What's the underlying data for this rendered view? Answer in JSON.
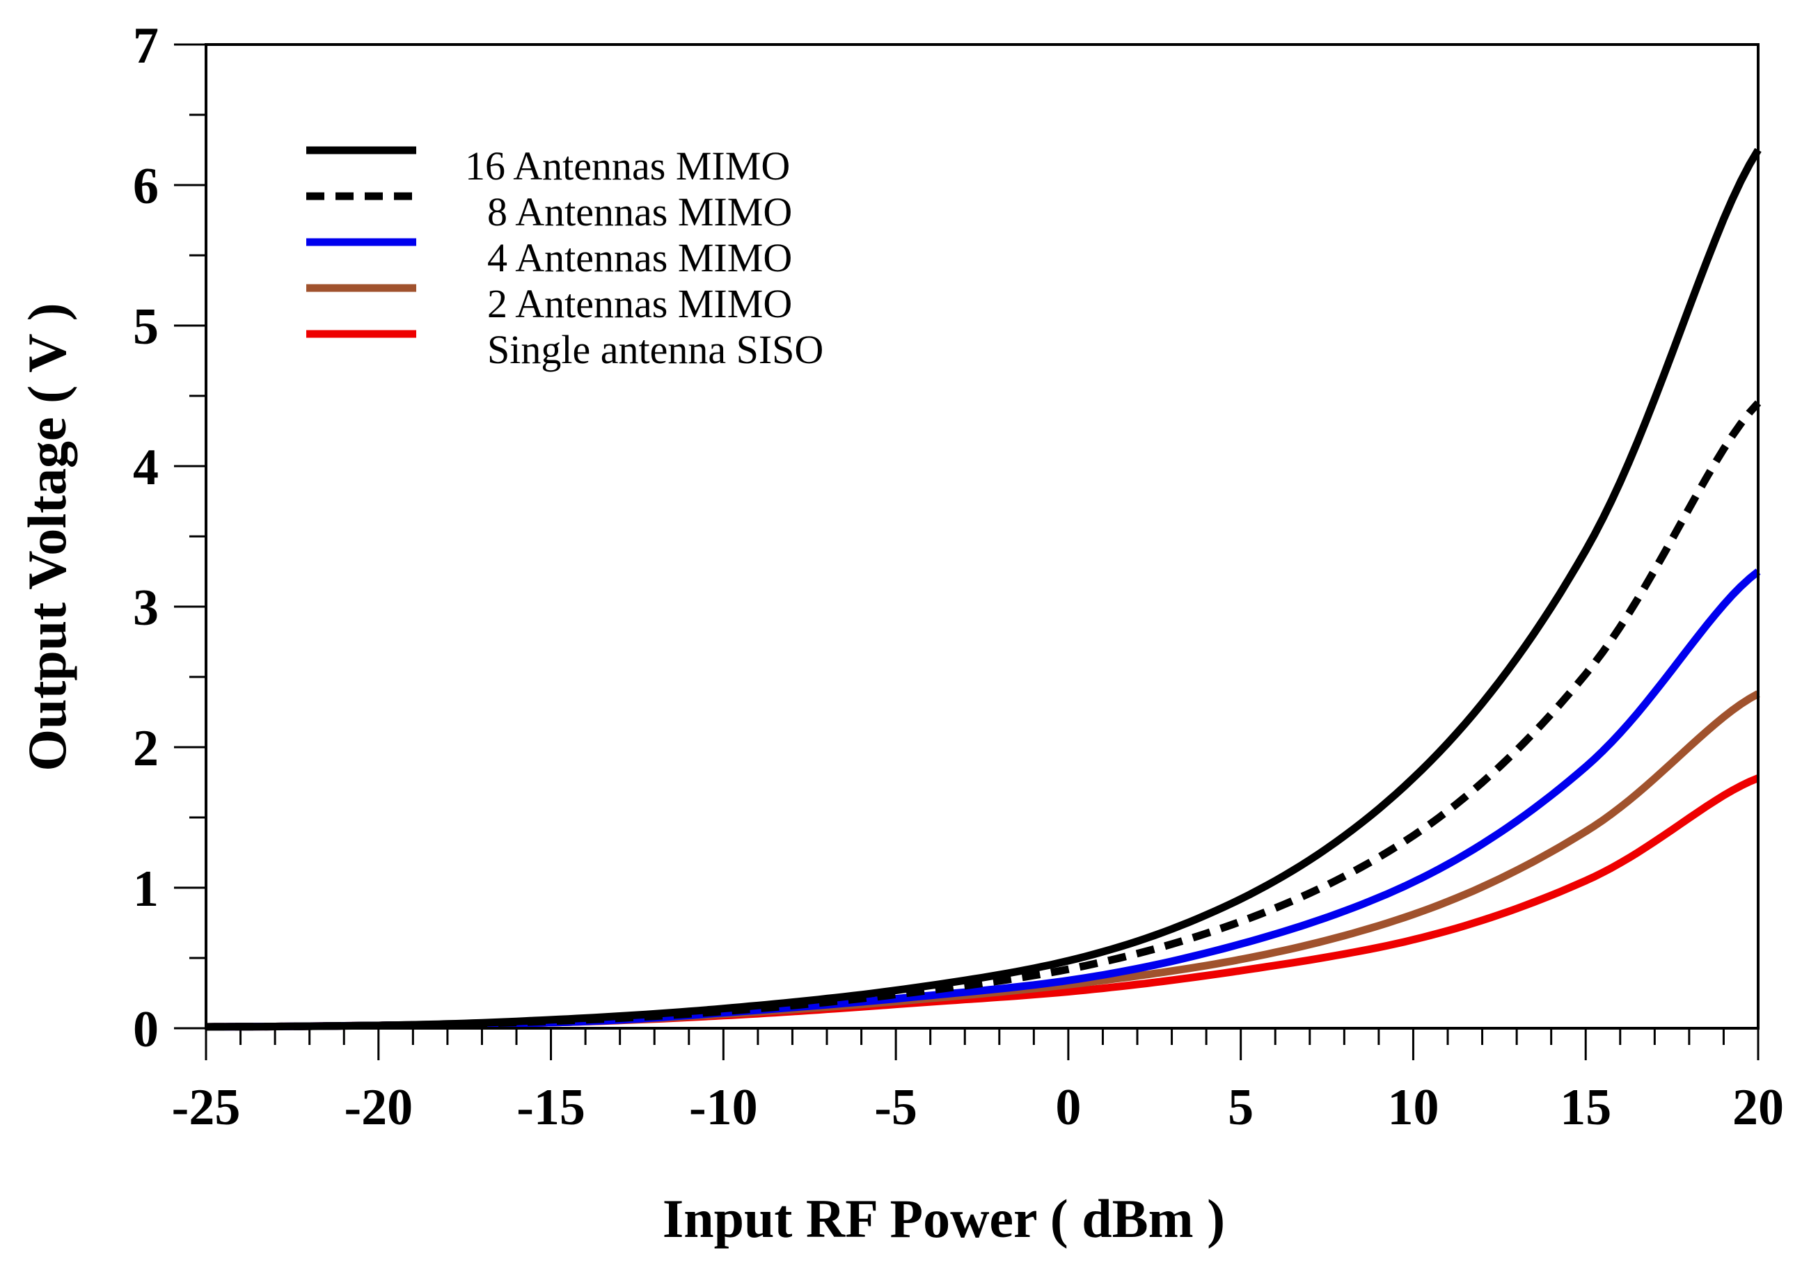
{
  "chart_data": {
    "type": "line",
    "title": "",
    "xlabel": "Input RF Power ( dBm )",
    "ylabel": "Output Voltage ( V )",
    "xlim": [
      -25,
      20
    ],
    "ylim": [
      0,
      7
    ],
    "xticks": [
      -25,
      -20,
      -15,
      -10,
      -5,
      0,
      5,
      10,
      15,
      20
    ],
    "xtick_labels": [
      "-25",
      "-20",
      "-15",
      "-10",
      "-5",
      "0",
      "5",
      "10",
      "15",
      "20"
    ],
    "yticks": [
      0,
      1,
      2,
      3,
      4,
      5,
      6,
      7
    ],
    "ytick_labels": [
      "0",
      "1",
      "2",
      "3",
      "4",
      "5",
      "6",
      "7"
    ],
    "grid": false,
    "legend_position": "top-left",
    "x": [
      -25,
      -20,
      -15,
      -10,
      -5,
      0,
      5,
      10,
      15,
      20
    ],
    "series": [
      {
        "name": "16 Antennas MIMO",
        "color": "#000000",
        "dash": "solid",
        "values": [
          0.01,
          0.02,
          0.06,
          0.14,
          0.27,
          0.48,
          0.92,
          1.78,
          3.4,
          6.25
        ]
      },
      {
        "name": "8 Antennas MIMO",
        "color": "#000000",
        "dash": "dashed",
        "values": [
          0.01,
          0.02,
          0.05,
          0.12,
          0.24,
          0.42,
          0.76,
          1.37,
          2.52,
          4.45
        ]
      },
      {
        "name": "4 Antennas MIMO",
        "color": "#0000ee",
        "dash": "solid",
        "values": [
          0.01,
          0.02,
          0.04,
          0.11,
          0.21,
          0.34,
          0.6,
          1.04,
          1.86,
          3.25
        ]
      },
      {
        "name": "2 Antennas MIMO",
        "color": "#a0522d",
        "dash": "solid",
        "values": [
          0.01,
          0.02,
          0.04,
          0.1,
          0.19,
          0.31,
          0.49,
          0.81,
          1.4,
          2.38
        ]
      },
      {
        "name": "Single antenna SISO",
        "color": "#ee0000",
        "dash": "solid",
        "values": [
          0.01,
          0.02,
          0.04,
          0.09,
          0.17,
          0.26,
          0.41,
          0.63,
          1.05,
          1.78
        ]
      }
    ]
  }
}
